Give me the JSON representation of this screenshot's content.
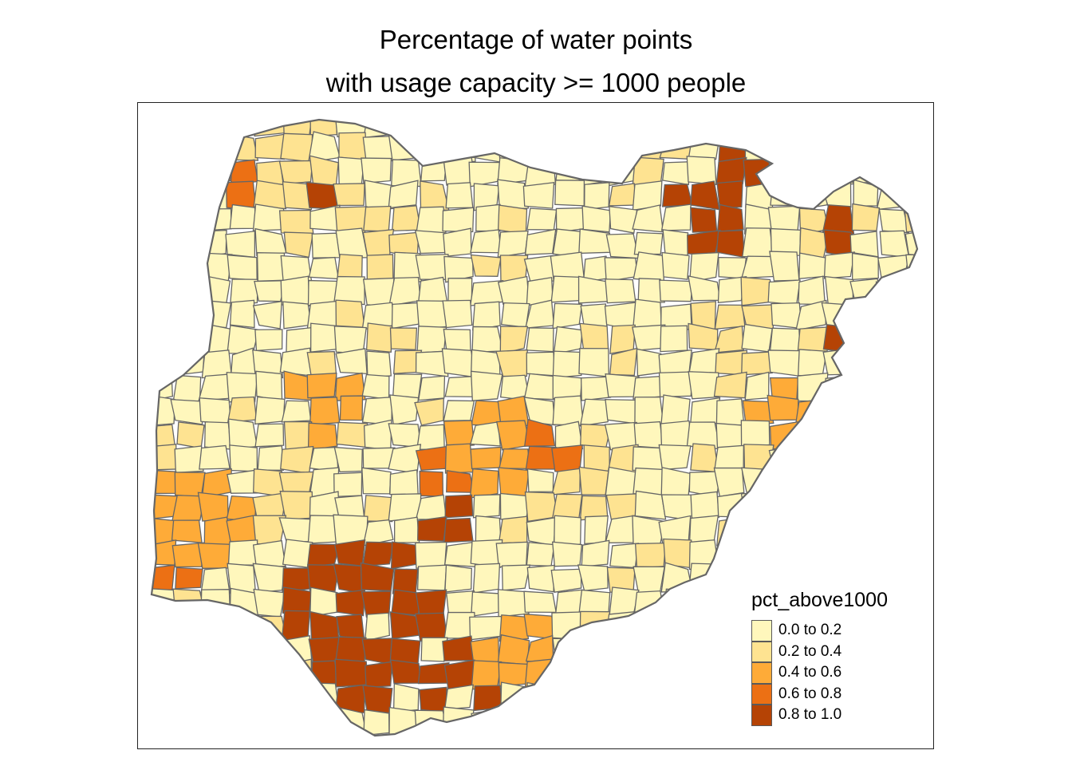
{
  "title": {
    "line1": "Percentage of water points",
    "line2": "with usage capacity >= 1000 people"
  },
  "legend": {
    "title": "pct_above1000",
    "items": [
      {
        "label": "0.0 to 0.2",
        "color": "#FFF7BC"
      },
      {
        "label": "0.2 to 0.4",
        "color": "#FEE391"
      },
      {
        "label": "0.4 to 0.6",
        "color": "#FEAB38"
      },
      {
        "label": "0.6 to 0.8",
        "color": "#EC7014"
      },
      {
        "label": "0.8 to 1.0",
        "color": "#B54305"
      }
    ]
  },
  "colors": {
    "border": "#666666",
    "frame": "#222222",
    "background": "#FFFFFF"
  }
}
